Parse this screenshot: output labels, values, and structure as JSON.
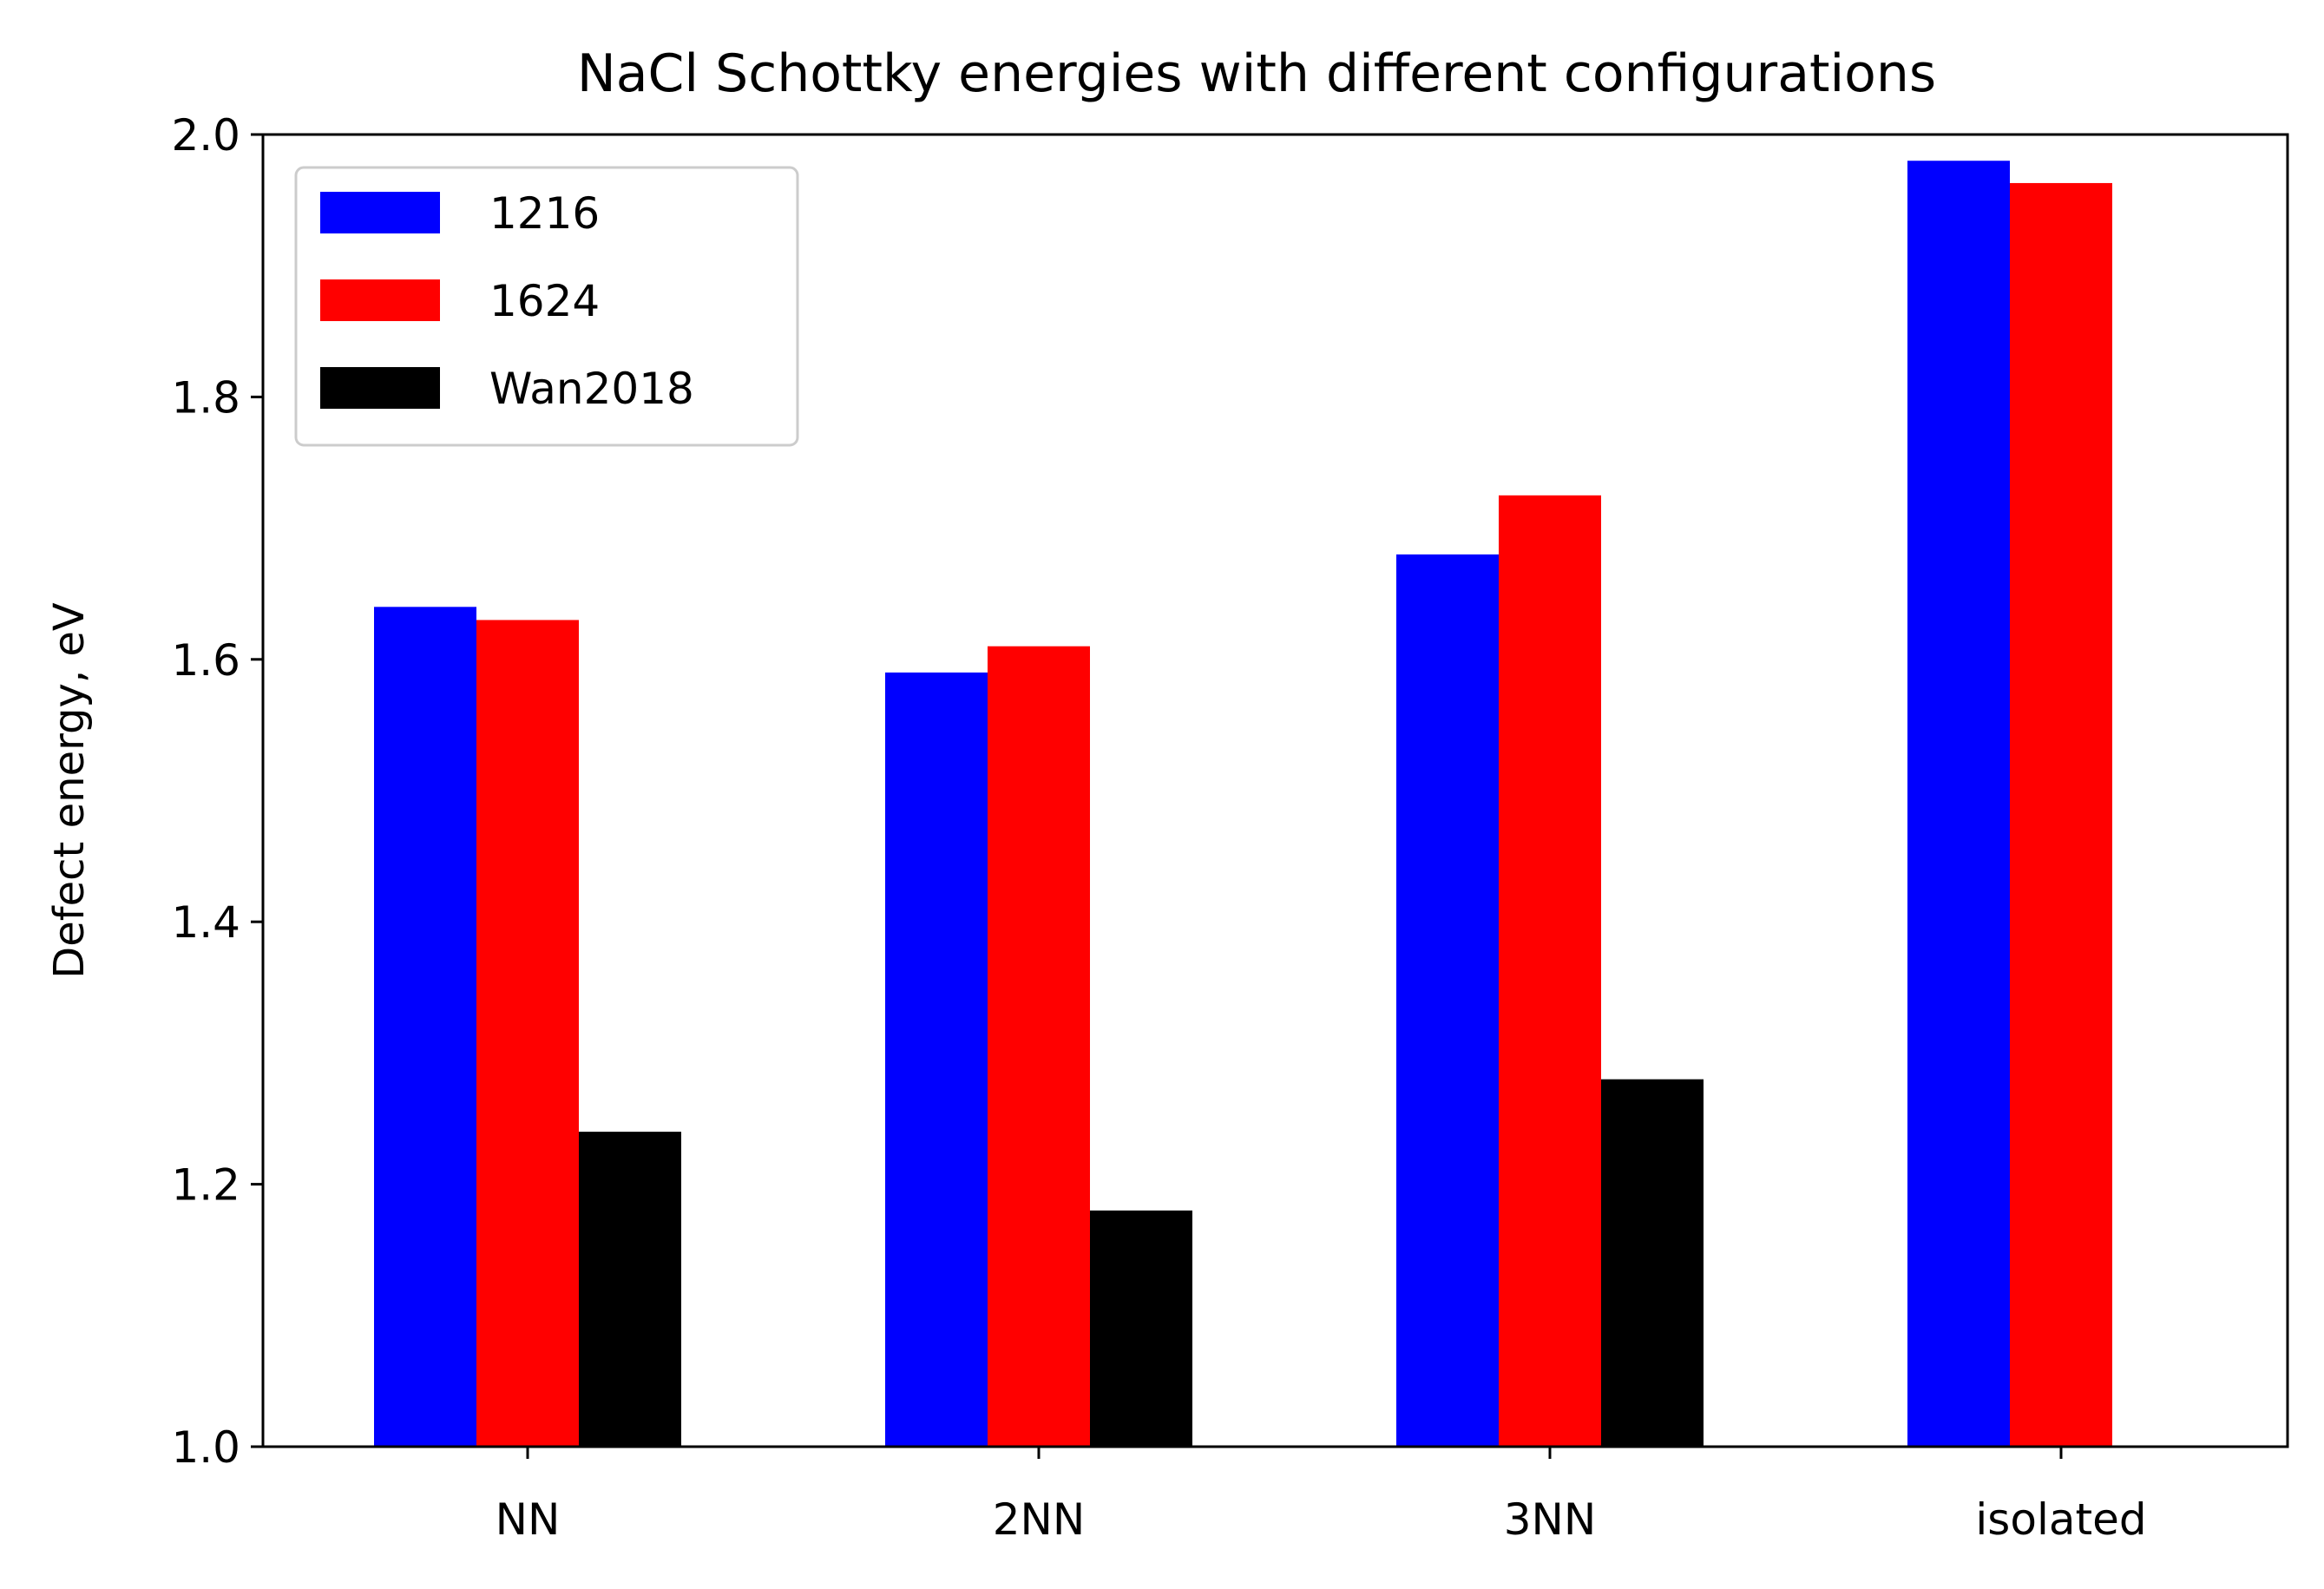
{
  "chart_data": {
    "type": "bar",
    "title": "NaCl Schottky energies with different configurations",
    "xlabel": "",
    "ylabel": "Defect energy, eV",
    "categories": [
      "NN",
      "2NN",
      "3NN",
      "isolated"
    ],
    "ylim": [
      1.0,
      2.0
    ],
    "yticks": [
      "1.0",
      "1.2",
      "1.4",
      "1.6",
      "1.8",
      "2.0"
    ],
    "grid": false,
    "legend_position": "top-left",
    "series": [
      {
        "name": "1216",
        "color": "#0000ff",
        "values": [
          1.64,
          1.59,
          1.68,
          1.98
        ]
      },
      {
        "name": "1624",
        "color": "#ff0000",
        "values": [
          1.63,
          1.61,
          1.725,
          1.963
        ]
      },
      {
        "name": "Wan2018",
        "color": "#000000",
        "values": [
          1.24,
          1.18,
          1.28,
          null
        ]
      }
    ]
  }
}
